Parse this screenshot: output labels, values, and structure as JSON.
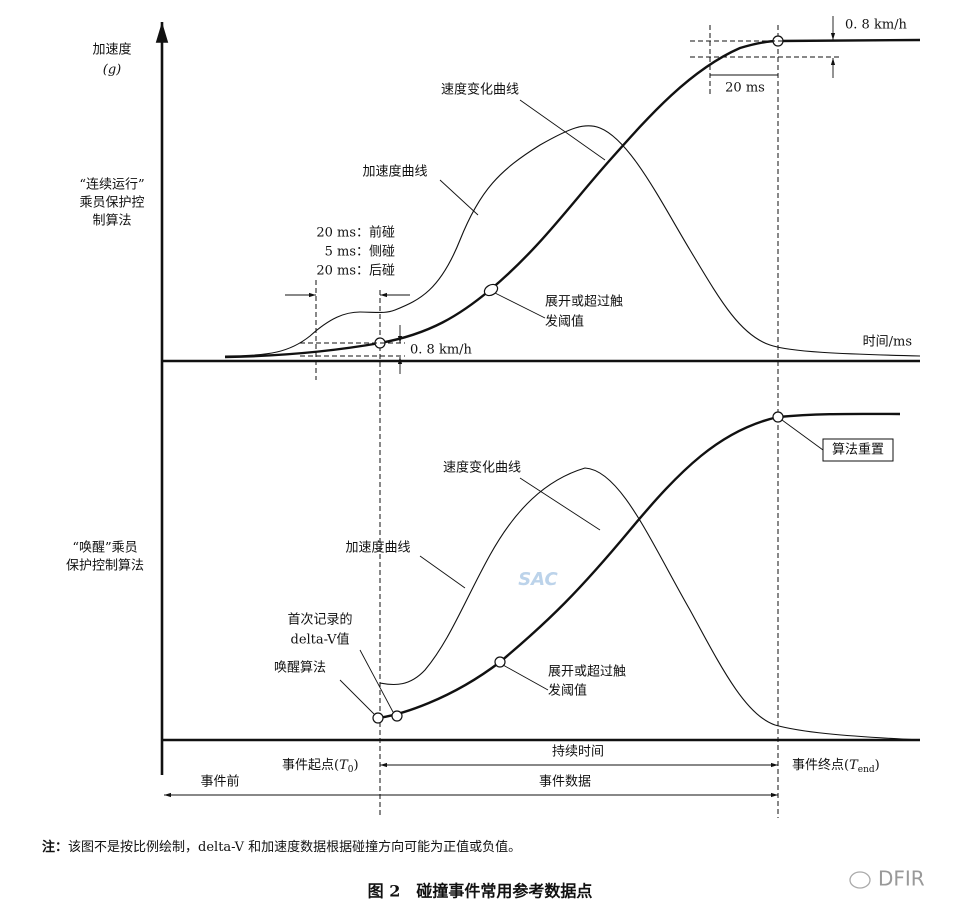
{
  "y_axis": {
    "label": "加速度",
    "unit": "(g)"
  },
  "top_panel": {
    "algorithm": [
      "“连续运行”",
      "乘员保护控",
      "制算法"
    ],
    "velocity_curve": "速度变化曲线",
    "acceleration_curve": "加速度曲线",
    "windows": [
      "20 ms：前碰",
      "5 ms：侧碰",
      "20 ms：后碰"
    ],
    "threshold_start": "0. 8 km/h",
    "threshold_end": "0. 8 km/h",
    "end_window": "20 ms",
    "deploy": [
      "展开或超过触",
      "发阈值"
    ],
    "x_axis": "时间/ms"
  },
  "bottom_panel": {
    "algorithm": [
      "“唤醒”乘员",
      "保护控制算法"
    ],
    "velocity_curve": "速度变化曲线",
    "acceleration_curve": "加速度曲线",
    "reset": "算法重置",
    "first_record": [
      "首次记录的",
      "delta-V值"
    ],
    "wakeup": "唤醒算法",
    "deploy": [
      "展开或超过触",
      "发阈值"
    ]
  },
  "timeline": {
    "event_start": [
      "事件起点(",
      "T",
      "0",
      ")"
    ],
    "duration": "持续时间",
    "event_end": [
      "事件终点(",
      "T",
      "end",
      ")"
    ],
    "pre_event": "事件前",
    "event_data": "事件数据"
  },
  "note": {
    "prefix": "注：",
    "text": "该图不是按比例绘制，delta-V 和加速度数据根据碰撞方向可能为正值或负值。"
  },
  "caption": "图 2　碰撞事件常用参考数据点",
  "watermark": {
    "center": "SAC",
    "corner": "DFIR"
  }
}
